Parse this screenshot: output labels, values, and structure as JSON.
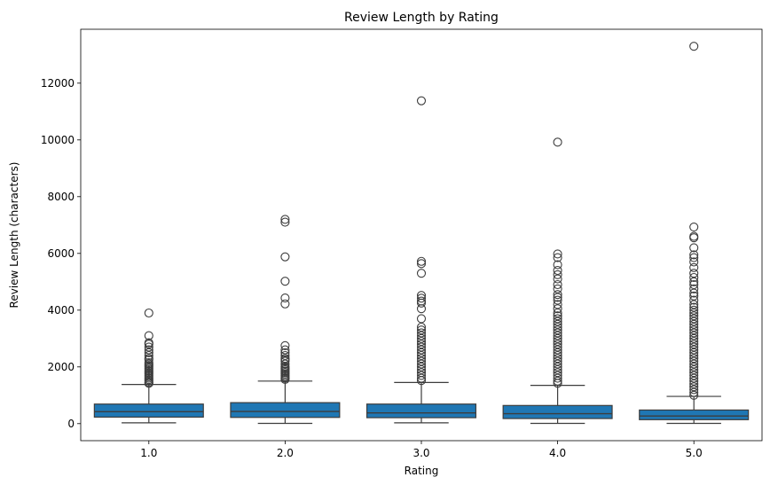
{
  "chart_data": {
    "type": "box",
    "title": "Review Length by Rating",
    "xlabel": "Rating",
    "ylabel": "Review Length (characters)",
    "categories": [
      "1.0",
      "2.0",
      "3.0",
      "4.0",
      "5.0"
    ],
    "ylim": [
      -600,
      13900
    ],
    "yticks": [
      0,
      2000,
      4000,
      6000,
      8000,
      10000,
      12000
    ],
    "ytick_labels": [
      "0",
      "2000",
      "4000",
      "6000",
      "8000",
      "10000",
      "12000"
    ],
    "grid": false,
    "legend": "none",
    "box_color": "#1f77b4",
    "boxes": [
      {
        "category": "1.0",
        "whisker_low": 30,
        "q1": 230,
        "median": 420,
        "q3": 690,
        "whisker_high": 1380,
        "outliers": [
          3900,
          3100,
          2850,
          2800,
          2700,
          2600,
          2500,
          2400,
          2300,
          2250,
          2150,
          2100,
          2050,
          2000,
          1950,
          1900,
          1850,
          1800,
          1750,
          1700,
          1650,
          1600,
          1550,
          1500,
          1450,
          1420
        ]
      },
      {
        "category": "2.0",
        "whisker_low": 10,
        "q1": 220,
        "median": 430,
        "q3": 740,
        "whisker_high": 1500,
        "outliers": [
          7200,
          7100,
          5880,
          5020,
          4430,
          4220,
          2750,
          2600,
          2500,
          2400,
          2300,
          2250,
          2200,
          2100,
          2000,
          1950,
          1900,
          1850,
          1800,
          1750,
          1700,
          1650,
          1600,
          1560
        ]
      },
      {
        "category": "3.0",
        "whisker_low": 30,
        "q1": 210,
        "median": 380,
        "q3": 690,
        "whisker_high": 1450,
        "outliers": [
          11380,
          5720,
          5640,
          5300,
          4520,
          4420,
          4320,
          4250,
          4050,
          3700,
          3400,
          3300,
          3200,
          3100,
          3000,
          2900,
          2800,
          2700,
          2600,
          2500,
          2400,
          2300,
          2200,
          2100,
          2000,
          1900,
          1800,
          1700,
          1600,
          1520
        ]
      },
      {
        "category": "4.0",
        "whisker_low": 10,
        "q1": 180,
        "median": 350,
        "q3": 640,
        "whisker_high": 1350,
        "outliers": [
          9920,
          5980,
          5850,
          5600,
          5400,
          5250,
          5100,
          4900,
          4750,
          4550,
          4450,
          4350,
          4200,
          4050,
          3900,
          3800,
          3700,
          3600,
          3500,
          3400,
          3300,
          3200,
          3100,
          3000,
          2900,
          2800,
          2700,
          2600,
          2500,
          2400,
          2300,
          2200,
          2100,
          2000,
          1900,
          1800,
          1700,
          1600,
          1500,
          1420
        ]
      },
      {
        "category": "5.0",
        "whisker_low": 10,
        "q1": 140,
        "median": 270,
        "q3": 480,
        "whisker_high": 960,
        "outliers": [
          13300,
          6930,
          6600,
          6550,
          6200,
          5950,
          5850,
          5700,
          5500,
          5300,
          5150,
          5000,
          4900,
          4750,
          4600,
          4500,
          4350,
          4200,
          4100,
          4000,
          3900,
          3800,
          3700,
          3600,
          3500,
          3400,
          3300,
          3200,
          3100,
          3000,
          2900,
          2800,
          2700,
          2600,
          2500,
          2400,
          2300,
          2200,
          2100,
          2000,
          1900,
          1800,
          1700,
          1600,
          1500,
          1400,
          1300,
          1200,
          1100,
          1000
        ]
      }
    ]
  }
}
